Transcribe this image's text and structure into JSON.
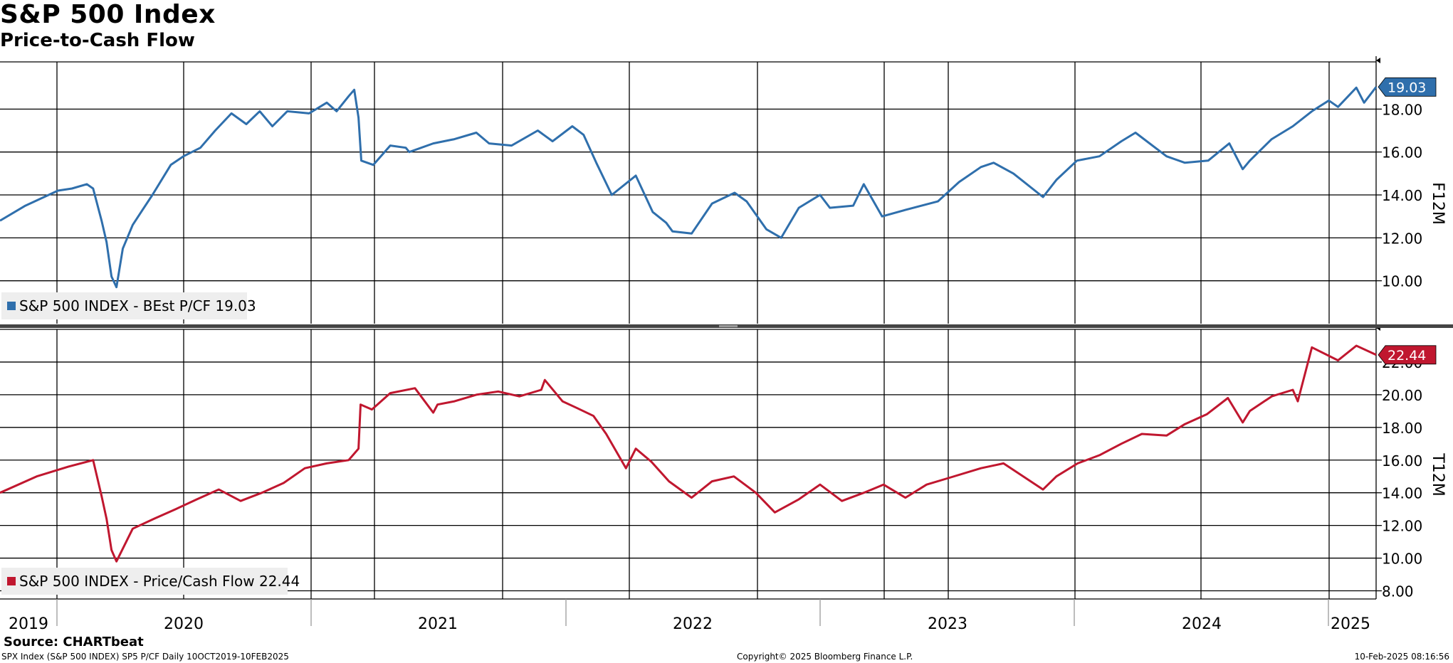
{
  "title": "S&P 500 Index",
  "subtitle": "Price-to-Cash Flow",
  "source": "Source: CHARTbeat",
  "footer": {
    "left": "SPX Index (S&P 500 INDEX) SP5 P/CF  Daily 10OCT2019-10FEB2025",
    "center": "Copyright© 2025 Bloomberg Finance L.P.",
    "right": "10-Feb-2025 08:16:56"
  },
  "chart_data": [
    {
      "type": "line",
      "ylabel": "F12M",
      "yticks": [
        "10.00",
        "12.00",
        "14.00",
        "16.00",
        "18.00"
      ],
      "ylim": [
        8.0,
        20.2
      ],
      "xlim": [
        "2019-10-10",
        "2025-02-10"
      ],
      "x_tick_labels": [
        "2019",
        "2020",
        "2021",
        "2022",
        "2023",
        "2024",
        "2025"
      ],
      "grid": true,
      "legend_position": "bottom-left",
      "last_value_label": "19.03",
      "color": "#2f6fac",
      "series": [
        {
          "name": "S&P 500 INDEX - BEst P/CF 19.03",
          "x": [
            "2019-10-10",
            "2019-11-15",
            "2019-12-31",
            "2020-01-20",
            "2020-02-10",
            "2020-02-19",
            "2020-03-02",
            "2020-03-09",
            "2020-03-16",
            "2020-03-23",
            "2020-04-01",
            "2020-04-15",
            "2020-04-29",
            "2020-05-13",
            "2020-06-08",
            "2020-06-26",
            "2020-07-20",
            "2020-08-10",
            "2020-09-02",
            "2020-09-23",
            "2020-10-12",
            "2020-10-30",
            "2020-11-20",
            "2020-12-21",
            "2021-01-15",
            "2021-01-29",
            "2021-02-15",
            "2021-02-23",
            "2021-03-01",
            "2021-03-05",
            "2021-03-22",
            "2021-04-15",
            "2021-05-07",
            "2021-05-12",
            "2021-06-15",
            "2021-07-15",
            "2021-08-15",
            "2021-09-02",
            "2021-10-04",
            "2021-11-10",
            "2021-12-01",
            "2021-12-29",
            "2022-01-14",
            "2022-02-01",
            "2022-02-23",
            "2022-03-29",
            "2022-04-22",
            "2022-05-11",
            "2022-05-20",
            "2022-06-16",
            "2022-07-15",
            "2022-08-16",
            "2022-09-02",
            "2022-09-30",
            "2022-10-21",
            "2022-11-15",
            "2022-12-15",
            "2022-12-29",
            "2023-01-31",
            "2023-02-15",
            "2023-03-13",
            "2023-04-15",
            "2023-05-31",
            "2023-06-30",
            "2023-07-31",
            "2023-08-18",
            "2023-09-15",
            "2023-10-27",
            "2023-11-15",
            "2023-12-14",
            "2024-01-15",
            "2024-02-15",
            "2024-03-06",
            "2024-04-19",
            "2024-05-15",
            "2024-06-17",
            "2024-07-17",
            "2024-08-05",
            "2024-08-15",
            "2024-09-15",
            "2024-10-15",
            "2024-11-11",
            "2024-12-05",
            "2024-12-18",
            "2025-01-13",
            "2025-01-24",
            "2025-02-10"
          ],
          "y": [
            12.8,
            13.5,
            14.2,
            14.3,
            14.5,
            14.3,
            12.8,
            11.8,
            10.2,
            9.7,
            11.5,
            12.6,
            13.3,
            14.0,
            15.4,
            15.8,
            16.2,
            17.0,
            17.8,
            17.3,
            17.9,
            17.2,
            17.9,
            17.8,
            18.3,
            17.9,
            18.6,
            18.9,
            17.6,
            15.6,
            15.4,
            16.3,
            16.2,
            16.0,
            16.4,
            16.6,
            16.9,
            16.4,
            16.3,
            17.0,
            16.5,
            17.2,
            16.8,
            15.5,
            14.0,
            14.9,
            13.2,
            12.7,
            12.3,
            12.2,
            13.6,
            14.1,
            13.7,
            12.4,
            12.0,
            13.4,
            14.0,
            13.4,
            13.5,
            14.5,
            13.0,
            13.3,
            13.7,
            14.6,
            15.3,
            15.5,
            15.0,
            13.9,
            14.7,
            15.6,
            15.8,
            16.5,
            16.9,
            15.8,
            15.5,
            15.6,
            16.4,
            15.2,
            15.6,
            16.6,
            17.2,
            17.9,
            18.4,
            18.1,
            19.0,
            18.3,
            19.03
          ]
        }
      ]
    },
    {
      "type": "line",
      "ylabel": "T12M",
      "yticks": [
        "8.00",
        "10.00",
        "12.00",
        "14.00",
        "16.00",
        "18.00",
        "20.00",
        "22.00"
      ],
      "ylim": [
        7.5,
        24.0
      ],
      "xlim": [
        "2019-10-10",
        "2025-02-10"
      ],
      "x_tick_labels": [
        "2019",
        "2020",
        "2021",
        "2022",
        "2023",
        "2024",
        "2025"
      ],
      "grid": true,
      "legend_position": "bottom-left",
      "last_value_label": "22.44",
      "color": "#c0172f",
      "series": [
        {
          "name": "S&P 500 INDEX - Price/Cash Flow 22.44",
          "x": [
            "2019-10-10",
            "2019-12-01",
            "2020-01-15",
            "2020-02-19",
            "2020-03-02",
            "2020-03-09",
            "2020-03-16",
            "2020-03-23",
            "2020-04-15",
            "2020-05-15",
            "2020-06-15",
            "2020-07-15",
            "2020-08-15",
            "2020-09-15",
            "2020-10-15",
            "2020-11-15",
            "2020-12-15",
            "2021-01-15",
            "2021-02-15",
            "2021-03-01",
            "2021-03-04",
            "2021-03-20",
            "2021-04-15",
            "2021-05-20",
            "2021-06-15",
            "2021-06-21",
            "2021-07-15",
            "2021-08-15",
            "2021-09-15",
            "2021-10-15",
            "2021-11-15",
            "2021-11-20",
            "2021-12-15",
            "2022-01-04",
            "2022-01-28",
            "2022-02-15",
            "2022-03-15",
            "2022-03-29",
            "2022-04-20",
            "2022-05-15",
            "2022-06-16",
            "2022-07-15",
            "2022-08-15",
            "2022-09-15",
            "2022-10-12",
            "2022-11-15",
            "2022-12-15",
            "2023-01-15",
            "2023-02-15",
            "2023-03-15",
            "2023-04-15",
            "2023-05-15",
            "2023-06-15",
            "2023-07-31",
            "2023-09-01",
            "2023-10-27",
            "2023-11-15",
            "2023-12-15",
            "2024-01-15",
            "2024-02-15",
            "2024-03-15",
            "2024-04-19",
            "2024-05-15",
            "2024-06-15",
            "2024-07-15",
            "2024-08-05",
            "2024-08-15",
            "2024-09-15",
            "2024-10-15",
            "2024-10-22",
            "2024-11-11",
            "2024-12-18",
            "2025-01-13",
            "2025-02-10"
          ],
          "y": [
            14.0,
            15.0,
            15.6,
            16.0,
            13.8,
            12.4,
            10.5,
            9.8,
            11.8,
            12.4,
            13.0,
            13.6,
            14.2,
            13.5,
            14.0,
            14.6,
            15.5,
            15.8,
            16.0,
            16.7,
            19.4,
            19.1,
            20.1,
            20.4,
            18.9,
            19.4,
            19.6,
            20.0,
            20.2,
            19.9,
            20.3,
            20.9,
            19.6,
            19.2,
            18.7,
            17.6,
            15.5,
            16.7,
            15.9,
            14.7,
            13.7,
            14.7,
            15.0,
            14.0,
            12.8,
            13.6,
            14.5,
            13.5,
            14.0,
            14.5,
            13.7,
            14.5,
            14.9,
            15.5,
            15.8,
            14.2,
            15.0,
            15.8,
            16.3,
            17.0,
            17.6,
            17.5,
            18.2,
            18.8,
            19.8,
            18.3,
            19.0,
            19.9,
            20.3,
            19.6,
            22.9,
            22.1,
            23.0,
            22.44
          ]
        }
      ]
    }
  ]
}
